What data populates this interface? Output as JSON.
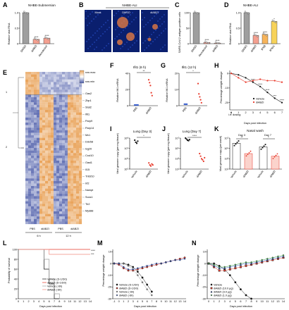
{
  "panels": {
    "A": {
      "letter": "A",
      "title": "NHBE-Submersion",
      "ylabel": "Relative viral RNA",
      "yticks": [
        "0",
        "0.5",
        "1.0"
      ],
      "cats": [
        "DMSO",
        "diABZI",
        "Remdesivir"
      ],
      "values": [
        1.0,
        0.14,
        0.18
      ],
      "colors": [
        "#9e9e9e",
        "#f4a090",
        "#f4a090"
      ],
      "stars": [
        "",
        "****",
        "****"
      ]
    },
    "B": {
      "letter": "B",
      "title": "NHBE-ALI",
      "labels": [
        "Mock",
        "DMSO",
        "diABZI"
      ]
    },
    "C": {
      "letter": "C",
      "ylabel": "SARS-CoV-2 antigen positive cells",
      "yticks": [
        "0",
        "50",
        "100"
      ],
      "cats": [
        "DMSO",
        "Remdesivir",
        "diABZI"
      ],
      "values": [
        100,
        4,
        2
      ],
      "colors": [
        "#9e9e9e",
        "#f4a090",
        "#f4a090"
      ],
      "stars": [
        "",
        "****",
        "****"
      ]
    },
    "D": {
      "letter": "D",
      "title": "NHBE-ALI",
      "ylabel": "Relative viral RNA",
      "yticks": [
        "0",
        "0.5",
        "1.0"
      ],
      "cats": [
        "DMSO",
        "diABZI",
        "IFNβ",
        "IFNλ1"
      ],
      "values": [
        1.0,
        0.27,
        0.3,
        0.72
      ],
      "colors": [
        "#9e9e9e",
        "#f4a090",
        "#f7b45a",
        "#f7d35a"
      ],
      "stars": [
        "",
        "****",
        "****",
        "*"
      ]
    },
    "E": {
      "letter": "E",
      "cluster_labels": [
        "1",
        "2"
      ],
      "legend": {
        "max": "row max",
        "min": "row min"
      },
      "genes": [
        "Oas2",
        "Zbp1",
        "Stat2",
        "Ifit1",
        "Parp9",
        "Parp14",
        "Mx1",
        "Ddx58",
        "Isg20",
        "Cxcl10",
        "Oasl1",
        "Il15",
        "Tnfsf10",
        "Irf2",
        "Nampt",
        "Socs1",
        "Tlr2",
        "Myd88"
      ],
      "groups": [
        "PBS",
        "diABZI",
        "PBS",
        "diABZI"
      ],
      "times": [
        "6 h",
        "12 h"
      ]
    },
    "F": {
      "letter": "F",
      "ylabel": "Relative Ifit1 mRNA",
      "title": "Ifit1 (6 h)",
      "yticks": [
        "0",
        "20",
        "40"
      ],
      "cats": [
        "PBS",
        "diABZI"
      ],
      "stars": "**"
    },
    "G": {
      "letter": "G",
      "ylabel": "Relative Ifit1 mRNA",
      "title": "Ifit1 (12 h)",
      "yticks": [
        "0",
        "10",
        "20"
      ],
      "cats": [
        "PBS",
        "diABZI"
      ],
      "stars": "*"
    },
    "H": {
      "letter": "H",
      "ylabel": "Percentage weight change",
      "xlabel": "Days post infection",
      "yticks": [
        "-20",
        "-10",
        "0"
      ],
      "xticks": [
        "0",
        "1",
        "2",
        "3",
        "4",
        "5",
        "6",
        "7"
      ],
      "legend": [
        "Vehicle",
        "diABZI"
      ],
      "dosing": "i.n. dosing",
      "stars": [
        "****",
        "****",
        "****",
        "***",
        "****"
      ]
    },
    "I": {
      "letter": "I",
      "title": "Lung (Day 3)",
      "ylabel": "Viral genome copy (per mg tissue)",
      "yticks": [
        "10⁵",
        "10⁶",
        "10⁷",
        "10⁸"
      ],
      "cats": [
        "Vehicle",
        "diABZI"
      ],
      "stars": "*"
    },
    "J": {
      "letter": "J",
      "title": "Lung (Day 7)",
      "ylabel": "Viral genome copy (per mg tissue)",
      "yticks": [
        "10¹",
        "10³",
        "10⁵",
        "10⁷"
      ],
      "cats": [
        "Vehicle",
        "diABZI"
      ],
      "stars": "****"
    },
    "K": {
      "letter": "K",
      "title": "Nasal wash",
      "ylabel": "Viral genome copy (per wash)",
      "day_labels": [
        "Day 3",
        "Day 7"
      ],
      "yticks": [
        "10¹",
        "10³",
        "10⁵",
        "10⁷"
      ],
      "cats": [
        "Vehicle",
        "diABZI",
        "Vehicle",
        "diABZI"
      ],
      "stars": [
        "**",
        "*"
      ]
    },
    "L": {
      "letter": "L",
      "ylabel": "Probability of survival",
      "xlabel": "Days post infection",
      "yticks": [
        "0",
        "20",
        "40",
        "60",
        "80",
        "100"
      ],
      "xticks": [
        "0",
        "1",
        "2",
        "3",
        "4",
        "5",
        "6",
        "7",
        "8",
        "9",
        "10",
        "11",
        "12",
        "13",
        "14"
      ],
      "legend": [
        "Vehicle (D-1/D0)",
        "diABZI (D-1/D0)",
        "Vehicle (-6h)",
        "diABZI (-6h)"
      ],
      "stars": [
        "****",
        "***"
      ]
    },
    "M": {
      "letter": "M",
      "ylabel": "Percentage weight change",
      "xlabel": "Days post infection",
      "yticks": [
        "-30",
        "-20",
        "-10",
        "0",
        "10"
      ],
      "xticks": [
        "-1",
        "0",
        "1",
        "2",
        "3",
        "4",
        "5",
        "6",
        "7",
        "8",
        "9",
        "10",
        "11",
        "12",
        "13",
        "14"
      ],
      "legend": [
        "Vehicle (D-1/D0)",
        "diABZI (D-1/D0)",
        "Vehicle (-6h)",
        "diABZI (-6h)"
      ]
    },
    "N": {
      "letter": "N",
      "ylabel": "Percentage weight change",
      "xlabel": "Days post infection",
      "yticks": [
        "-30",
        "-20",
        "-10",
        "0",
        "10"
      ],
      "xticks": [
        "0",
        "1",
        "2",
        "3",
        "4",
        "5",
        "6",
        "7",
        "8",
        "9",
        "10",
        "11",
        "12",
        "13",
        "14"
      ],
      "legend": [
        "Vehicle",
        "diABZI (10.0 µg)",
        "diABZI (3.0 µg)",
        "diABZI (1.0 µg)"
      ]
    }
  },
  "colors": {
    "vehicle": "#111111",
    "diabzi": "#e8392a",
    "grey": "#9e9e9e",
    "blue": "#3a5fcd",
    "green": "#3aa84a"
  },
  "chart_data": [
    {
      "type": "line",
      "panel": "H",
      "x": [
        0,
        1,
        2,
        3,
        4,
        5,
        6,
        7
      ],
      "series": [
        {
          "name": "Vehicle",
          "values": [
            0,
            -1,
            -3,
            -6,
            -9,
            -13,
            -17,
            -20
          ]
        },
        {
          "name": "diABZI",
          "values": [
            0,
            -3,
            -6,
            -5,
            -4,
            -5,
            -5,
            -6
          ]
        }
      ],
      "ylim": [
        -25,
        2
      ]
    },
    {
      "type": "line",
      "panel": "L",
      "x": [
        0,
        4,
        5,
        6,
        7,
        8,
        14
      ],
      "series": [
        {
          "name": "Vehicle (D-1/D0)",
          "values": [
            100,
            100,
            60,
            30,
            0,
            0,
            0
          ]
        },
        {
          "name": "diABZI (D-1/D0)",
          "values": [
            100,
            100,
            100,
            100,
            100,
            100,
            100
          ]
        },
        {
          "name": "Vehicle (-6h)",
          "values": [
            100,
            100,
            80,
            40,
            10,
            0,
            0
          ]
        },
        {
          "name": "diABZI (-6h)",
          "values": [
            100,
            100,
            100,
            90,
            90,
            90,
            90
          ]
        }
      ]
    },
    {
      "type": "line",
      "panel": "M",
      "x": [
        -1,
        0,
        1,
        2,
        3,
        4,
        5,
        6,
        7,
        8,
        9,
        10,
        11,
        12,
        13,
        14
      ],
      "series": [
        {
          "name": "Vehicle (D-1/D0)",
          "values": [
            0,
            0,
            0,
            -1,
            -3,
            -7,
            -12,
            -18,
            -24,
            null,
            null,
            null,
            null,
            null,
            null,
            null
          ]
        },
        {
          "name": "diABZI (D-1/D0)",
          "values": [
            0,
            -1,
            -4,
            -6,
            -6,
            -5,
            -4,
            -3,
            -2,
            -1,
            0,
            1,
            2,
            3,
            4,
            5
          ]
        },
        {
          "name": "Vehicle (-6h)",
          "values": [
            0,
            0,
            0,
            -2,
            -5,
            -10,
            -16,
            -22,
            -27,
            null,
            null,
            null,
            null,
            null,
            null,
            null
          ]
        },
        {
          "name": "diABZI (-6h)",
          "values": [
            0,
            0,
            -3,
            -5,
            -5,
            -4,
            -3,
            -2,
            -1,
            0,
            0,
            1,
            2,
            3,
            3,
            4
          ]
        }
      ],
      "ylim": [
        -30,
        12
      ]
    },
    {
      "type": "line",
      "panel": "N",
      "x": [
        0,
        1,
        2,
        3,
        4,
        5,
        6,
        7,
        8,
        9,
        10,
        11,
        12,
        13,
        14
      ],
      "series": [
        {
          "name": "Vehicle",
          "values": [
            0,
            0,
            -2,
            -5,
            -10,
            -16,
            -22,
            -27,
            -30,
            null,
            null,
            null,
            null,
            null,
            null
          ]
        },
        {
          "name": "diABZI (10.0 µg)",
          "values": [
            0,
            -3,
            -6,
            -6,
            -5,
            -4,
            -3,
            -2,
            -1,
            0,
            1,
            2,
            3,
            4,
            5
          ]
        },
        {
          "name": "diABZI (3.0 µg)",
          "values": [
            0,
            -2,
            -4,
            -4,
            -3,
            -2,
            -1,
            0,
            0,
            1,
            2,
            3,
            4,
            5,
            6
          ]
        },
        {
          "name": "diABZI (1.0 µg)",
          "values": [
            0,
            -1,
            -3,
            -3,
            -2,
            -1,
            0,
            1,
            1,
            2,
            3,
            4,
            5,
            6,
            7
          ]
        }
      ],
      "ylim": [
        -30,
        12
      ]
    },
    {
      "type": "scatter",
      "panel": "F",
      "categories": [
        "PBS",
        "diABZI"
      ],
      "values": [
        [
          1,
          1,
          1,
          1,
          1
        ],
        [
          36,
          32,
          28,
          18,
          14
        ]
      ],
      "ylim": [
        0,
        45
      ]
    },
    {
      "type": "scatter",
      "panel": "G",
      "categories": [
        "PBS",
        "diABZI"
      ],
      "values": [
        [
          1,
          1,
          1,
          1
        ],
        [
          15,
          8,
          6,
          4,
          2
        ]
      ],
      "ylim": [
        0,
        22
      ]
    },
    {
      "type": "scatter",
      "panel": "I",
      "categories": [
        "Vehicle",
        "diABZI"
      ],
      "values": [
        [
          7.8,
          7.6,
          7.5,
          7.7
        ],
        [
          5.6,
          5.4,
          5.3,
          5.5,
          5.4
        ]
      ],
      "ylim": [
        5,
        8
      ]
    },
    {
      "type": "scatter",
      "panel": "J",
      "categories": [
        "Vehicle",
        "diABZI"
      ],
      "values": [
        [
          7.0,
          6.8,
          6.6,
          6.5,
          6.7
        ],
        [
          4.0,
          3.5,
          3.0,
          2.8,
          2.5,
          3.2
        ]
      ],
      "ylim": [
        1,
        7
      ]
    },
    {
      "type": "bar",
      "panel": "K",
      "categories": [
        "Vehicle",
        "diABZI",
        "Vehicle",
        "diABZI"
      ],
      "values": [
        6.0,
        4.0,
        5.3,
        3.5
      ],
      "ylim": [
        1,
        7
      ]
    }
  ]
}
